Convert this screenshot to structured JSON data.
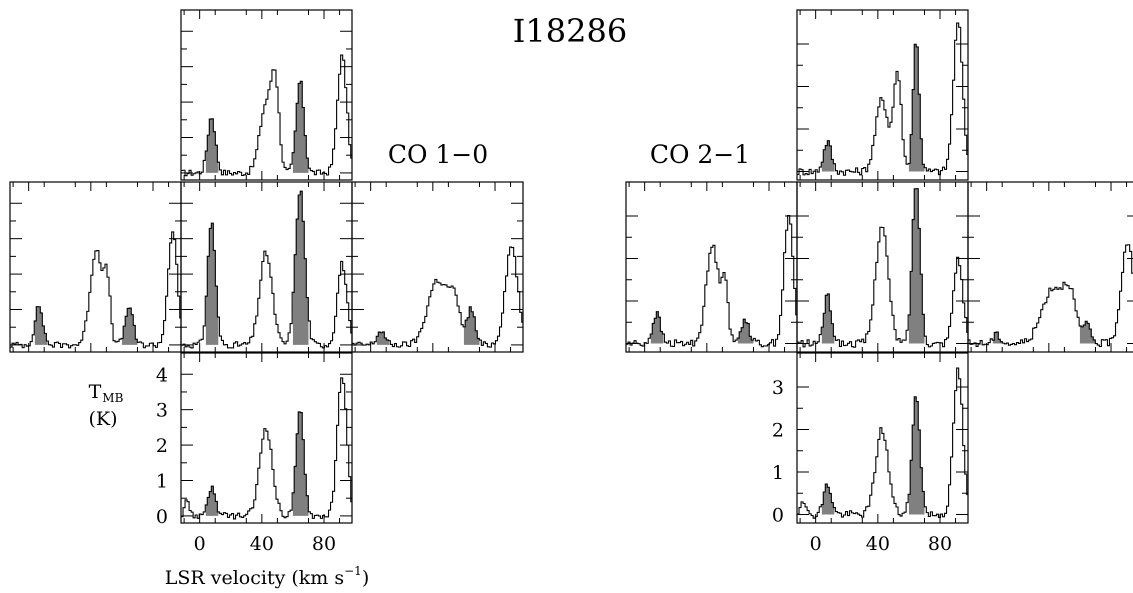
{
  "title": "I18286",
  "chart_data": {
    "type": "line",
    "source_label": "I18286",
    "xlabel_main": "LSR velocity (km s",
    "xlabel_sup": "−1",
    "xlabel_close": ")",
    "ylabel_main": "T",
    "ylabel_sub": "MB",
    "ylabel_unit": "(K)",
    "xlim": [
      -12,
      98
    ],
    "x_ticks": [
      0,
      40,
      80
    ],
    "x_tick_labels": [
      "0",
      "40",
      "80"
    ],
    "shaded_ranges": [
      [
        4,
        12
      ],
      [
        60,
        70
      ]
    ],
    "panels": [
      {
        "name": "CO 1-0",
        "label": "CO 1−0",
        "ylim": [
          -0.2,
          4.6
        ],
        "y_ticks": [
          0,
          1,
          2,
          3,
          4
        ],
        "y_tick_labels": [
          "0",
          "1",
          "2",
          "3",
          "4"
        ],
        "spectra": [
          {
            "position": "north",
            "lines": [
              [
                7,
                1.6,
                2.5
              ],
              [
                42,
                1.9,
                4
              ],
              [
                48,
                2.3,
                2.5
              ],
              [
                64,
                2.6,
                2.5
              ],
              [
                91,
                3.3,
                3
              ]
            ]
          },
          {
            "position": "west",
            "lines": [
              [
                6,
                1.1,
                2.5
              ],
              [
                43,
                2.7,
                4
              ],
              [
                50,
                1.5,
                2
              ],
              [
                64,
                1.1,
                2.5
              ],
              [
                92,
                3.2,
                3
              ]
            ]
          },
          {
            "position": "center",
            "lines": [
              [
                7,
                3.5,
                2.5
              ],
              [
                42,
                2.6,
                4
              ],
              [
                64,
                4.4,
                3
              ],
              [
                91,
                2.3,
                3
              ]
            ]
          },
          {
            "position": "east",
            "lines": [
              [
                6,
                0.4,
                2.5
              ],
              [
                42,
                1.8,
                6
              ],
              [
                53,
                1.2,
                4
              ],
              [
                64,
                1.0,
                2.5
              ],
              [
                90,
                2.8,
                4
              ]
            ]
          },
          {
            "position": "south",
            "lines": [
              [
                -9,
                0.5,
                1.5
              ],
              [
                7,
                0.8,
                2.5
              ],
              [
                42,
                2.5,
                4
              ],
              [
                64,
                3.0,
                2.5
              ],
              [
                91,
                4.0,
                3
              ]
            ]
          }
        ]
      },
      {
        "name": "CO 2-1",
        "label": "CO 2−1",
        "ylim": [
          -0.2,
          3.8
        ],
        "y_ticks": [
          0,
          1,
          2,
          3
        ],
        "y_tick_labels": [
          "0",
          "1",
          "2",
          "3"
        ],
        "spectra": [
          {
            "position": "north",
            "lines": [
              [
                7,
                0.7,
                2.5
              ],
              [
                42,
                1.7,
                4
              ],
              [
                52,
                2.3,
                2.5
              ],
              [
                64,
                3.1,
                2
              ],
              [
                91,
                3.5,
                3
              ]
            ]
          },
          {
            "position": "west",
            "lines": [
              [
                7,
                0.7,
                2.5
              ],
              [
                43,
                2.3,
                4
              ],
              [
                51,
                1.4,
                2
              ],
              [
                64,
                0.6,
                2.5
              ],
              [
                92,
                3.0,
                3
              ]
            ]
          },
          {
            "position": "center",
            "lines": [
              [
                7,
                1.1,
                2.5
              ],
              [
                42,
                2.8,
                4
              ],
              [
                64,
                3.8,
                2.5
              ],
              [
                91,
                2.0,
                3
              ]
            ]
          },
          {
            "position": "east",
            "lines": [
              [
                6,
                0.2,
                2.5
              ],
              [
                42,
                1.3,
                7
              ],
              [
                53,
                1.0,
                4
              ],
              [
                64,
                0.4,
                2.5
              ],
              [
                90,
                2.4,
                4
              ]
            ]
          },
          {
            "position": "south",
            "lines": [
              [
                -9,
                0.4,
                1.5
              ],
              [
                7,
                0.7,
                2.5
              ],
              [
                42,
                2.0,
                4
              ],
              [
                64,
                2.8,
                2.5
              ],
              [
                91,
                3.4,
                3
              ]
            ]
          }
        ]
      }
    ]
  }
}
